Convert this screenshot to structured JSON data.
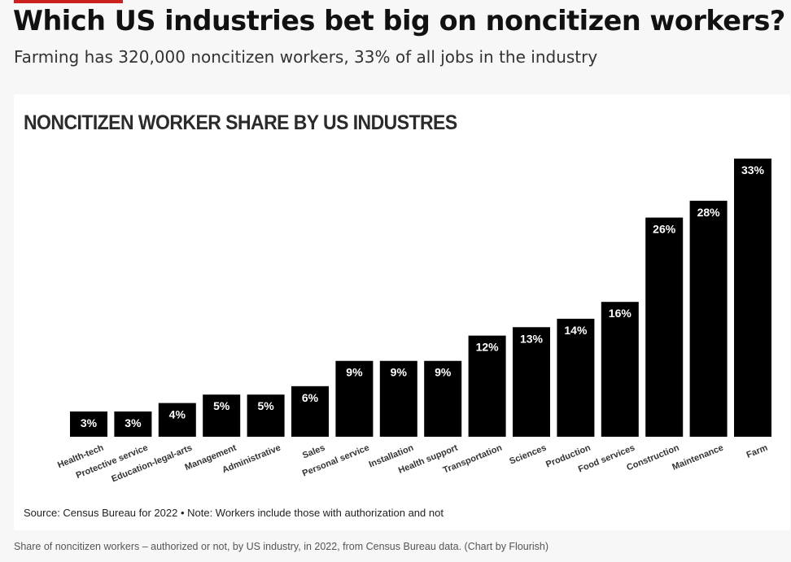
{
  "article": {
    "headline": "Which US industries bet big on noncitizen workers?",
    "dek": "Farming has 320,000 noncitizen workers, 33% of all jobs in the industry",
    "caption": "Share of noncitizen workers – authorized or not, by US industry, in 2022, from Census Bureau data. (Chart by Flourish)",
    "accent_color": "#cc1f1f"
  },
  "chart_data": {
    "type": "bar",
    "title": "NONCITIZEN WORKER SHARE BY US INDUSTRES",
    "source": "Source: Census Bureau for 2022 • Note: Workers include those with authorization and not",
    "categories": [
      "Health-tech",
      "Protective service",
      "Education-legal-arts",
      "Management",
      "Administrative",
      "Sales",
      "Personal service",
      "Installation",
      "Health support",
      "Transportation",
      "Sciences",
      "Production",
      "Food services",
      "Construction",
      "Maintenance",
      "Farm"
    ],
    "values": [
      3,
      3,
      4,
      5,
      5,
      6,
      9,
      9,
      9,
      12,
      13,
      14,
      16,
      26,
      28,
      33
    ],
    "value_suffix": "%",
    "bar_color": "#000000",
    "ylim": [
      0,
      33
    ],
    "grid": false,
    "legend": "none"
  }
}
